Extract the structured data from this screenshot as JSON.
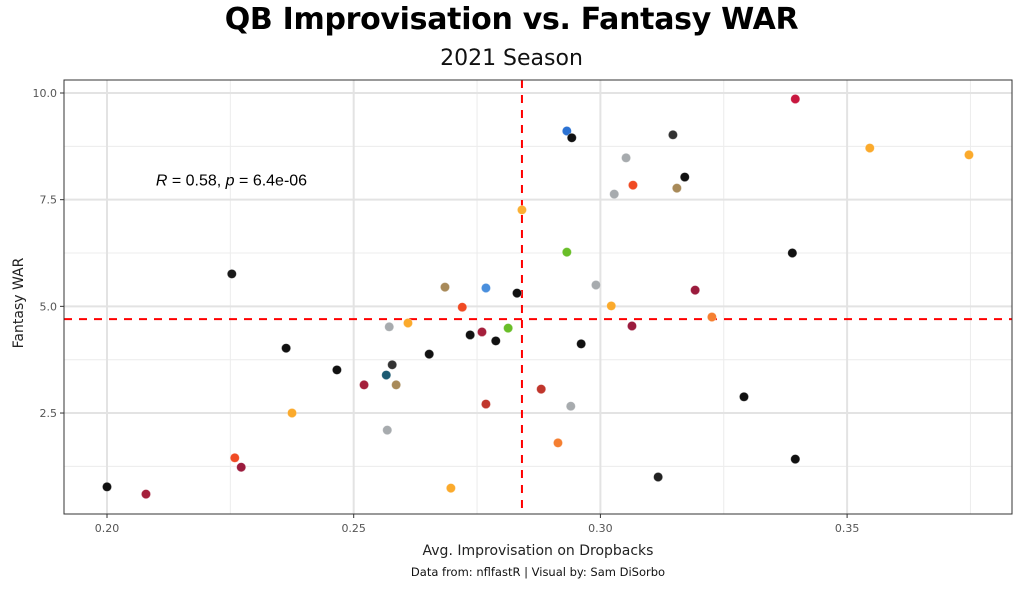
{
  "chart_data": {
    "type": "scatter",
    "title": "QB Improvisation vs. Fantasy WAR",
    "subtitle": "2021 Season",
    "xlabel": "Avg. Improvisation on Dropbacks",
    "ylabel": "Fantasy WAR",
    "caption": "Data from: nflfastR | Visual by: Sam DiSorbo",
    "xlim": [
      0.19,
      0.3845
    ],
    "ylim": [
      0.25,
      10.3
    ],
    "x_ticks": [
      0.2,
      0.25,
      0.3,
      0.35
    ],
    "x_tick_labels": [
      "0.20",
      "0.25",
      "0.30",
      "0.35"
    ],
    "y_ticks": [
      2.5,
      5.0,
      7.5,
      10.0
    ],
    "y_tick_labels": [
      "2.5",
      "5.0",
      "7.5",
      "10.0"
    ],
    "grid": true,
    "annotation": {
      "r_symbol": "R",
      "r_text": " = 0.58, ",
      "p_symbol": "p",
      "p_text": " = 6.4e-06",
      "x": 0.2099,
      "y": 7.95
    },
    "reference_lines": {
      "vertical_x": 0.2841,
      "horizontal_y": 4.7,
      "color": "#ff0000",
      "style": "dashed"
    },
    "points": [
      {
        "x": 0.2,
        "y": 0.77,
        "color": "#111111"
      },
      {
        "x": 0.2079,
        "y": 0.6,
        "color": "#a5203c"
      },
      {
        "x": 0.2259,
        "y": 1.45,
        "color": "#f04a23"
      },
      {
        "x": 0.2272,
        "y": 1.23,
        "color": "#9b1b3d"
      },
      {
        "x": 0.2253,
        "y": 5.76,
        "color": "#1a1a1a"
      },
      {
        "x": 0.2363,
        "y": 4.02,
        "color": "#111111"
      },
      {
        "x": 0.2375,
        "y": 2.5,
        "color": "#fbaa2c"
      },
      {
        "x": 0.2466,
        "y": 3.51,
        "color": "#111111"
      },
      {
        "x": 0.2521,
        "y": 3.16,
        "color": "#a5203c"
      },
      {
        "x": 0.2572,
        "y": 4.52,
        "color": "#a7abae"
      },
      {
        "x": 0.261,
        "y": 4.61,
        "color": "#fbaa2c"
      },
      {
        "x": 0.2566,
        "y": 3.39,
        "color": "#1c5a72"
      },
      {
        "x": 0.2578,
        "y": 3.63,
        "color": "#333333"
      },
      {
        "x": 0.2586,
        "y": 3.16,
        "color": "#a88a59"
      },
      {
        "x": 0.2568,
        "y": 2.1,
        "color": "#a7abae"
      },
      {
        "x": 0.2653,
        "y": 3.88,
        "color": "#111111"
      },
      {
        "x": 0.2685,
        "y": 5.45,
        "color": "#a88a59"
      },
      {
        "x": 0.272,
        "y": 4.98,
        "color": "#f04a23"
      },
      {
        "x": 0.2736,
        "y": 4.33,
        "color": "#111111"
      },
      {
        "x": 0.276,
        "y": 4.4,
        "color": "#a5203c"
      },
      {
        "x": 0.2768,
        "y": 5.43,
        "color": "#4a8fdd"
      },
      {
        "x": 0.2788,
        "y": 4.19,
        "color": "#111111"
      },
      {
        "x": 0.2813,
        "y": 4.49,
        "color": "#69be28"
      },
      {
        "x": 0.2831,
        "y": 5.31,
        "color": "#111111"
      },
      {
        "x": 0.2697,
        "y": 0.74,
        "color": "#fbaa2c"
      },
      {
        "x": 0.2768,
        "y": 2.71,
        "color": "#c0362c"
      },
      {
        "x": 0.2841,
        "y": 7.26,
        "color": "#fbb034"
      },
      {
        "x": 0.2932,
        "y": 6.27,
        "color": "#69be28"
      },
      {
        "x": 0.2932,
        "y": 9.11,
        "color": "#2b72d3"
      },
      {
        "x": 0.2942,
        "y": 8.95,
        "color": "#111111"
      },
      {
        "x": 0.288,
        "y": 3.06,
        "color": "#c0362c"
      },
      {
        "x": 0.294,
        "y": 2.66,
        "color": "#a7abae"
      },
      {
        "x": 0.2914,
        "y": 1.8,
        "color": "#f57f31"
      },
      {
        "x": 0.2961,
        "y": 4.12,
        "color": "#111111"
      },
      {
        "x": 0.2991,
        "y": 5.5,
        "color": "#a7abae"
      },
      {
        "x": 0.3022,
        "y": 5.01,
        "color": "#fbaa2c"
      },
      {
        "x": 0.3052,
        "y": 8.48,
        "color": "#a7abae"
      },
      {
        "x": 0.3028,
        "y": 7.63,
        "color": "#a7abae"
      },
      {
        "x": 0.3066,
        "y": 7.84,
        "color": "#f04a23"
      },
      {
        "x": 0.3064,
        "y": 4.54,
        "color": "#9b1b3d"
      },
      {
        "x": 0.3147,
        "y": 9.02,
        "color": "#333333"
      },
      {
        "x": 0.3171,
        "y": 8.03,
        "color": "#111111"
      },
      {
        "x": 0.3155,
        "y": 7.77,
        "color": "#a88a59"
      },
      {
        "x": 0.3192,
        "y": 5.38,
        "color": "#9b1b3d"
      },
      {
        "x": 0.3226,
        "y": 4.75,
        "color": "#f57f31"
      },
      {
        "x": 0.3117,
        "y": 1.0,
        "color": "#222222"
      },
      {
        "x": 0.3291,
        "y": 2.88,
        "color": "#111111"
      },
      {
        "x": 0.3389,
        "y": 6.25,
        "color": "#111111"
      },
      {
        "x": 0.3395,
        "y": 1.42,
        "color": "#111111"
      },
      {
        "x": 0.3395,
        "y": 9.86,
        "color": "#c8173f"
      },
      {
        "x": 0.3546,
        "y": 8.71,
        "color": "#fbaa2c"
      },
      {
        "x": 0.3747,
        "y": 8.55,
        "color": "#fbaa2c"
      }
    ]
  }
}
